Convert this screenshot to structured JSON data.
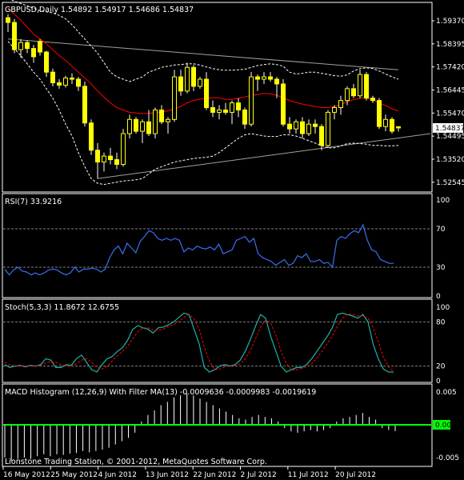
{
  "colors": {
    "background": "#000000",
    "frame": "#ffffff",
    "candle": "#ffff00",
    "wick": "#ffffff",
    "ma": "#ff0000",
    "bands": "#ffffff",
    "trend_top": "#a0a0a0",
    "trend_bottom": "#a0a0a0",
    "rsi": "#3a6ff0",
    "stoch_main": "#20b2aa",
    "stoch_signal": "#ff0000",
    "macd_hist": "#ffffff",
    "macd_filter": "#00ff00",
    "level_line": "#808080"
  },
  "chart_data": [
    {
      "type": "candlestick",
      "title": "GBPUSD,Daily  1.54892 1.54917 1.54686 1.54837",
      "symbol": "GBPUSD",
      "timeframe": "Daily",
      "ohlc_label": "1.54892 1.54917 1.54686 1.54837",
      "last_price_label": "1.54837",
      "ylim": [
        1.522,
        1.6008
      ],
      "y_ticks": [
        "1.59370",
        "1.58395",
        "1.57420",
        "1.56445",
        "1.55470",
        "1.54495",
        "1.53520",
        "1.52545"
      ],
      "y_tick_values": [
        1.5937,
        1.58395,
        1.5742,
        1.56445,
        1.5547,
        1.54495,
        1.5352,
        1.52545
      ],
      "candles": [
        [
          1.595,
          1.5965,
          1.589,
          1.593
        ],
        [
          1.593,
          1.5945,
          1.58,
          1.5815
        ],
        [
          1.5815,
          1.586,
          1.578,
          1.5845
        ],
        [
          1.5845,
          1.5855,
          1.58,
          1.582
        ],
        [
          1.582,
          1.5835,
          1.576,
          1.5785
        ],
        [
          1.585,
          1.586,
          1.579,
          1.5805
        ],
        [
          1.5805,
          1.581,
          1.57,
          1.572
        ],
        [
          1.572,
          1.5735,
          1.566,
          1.5675
        ],
        [
          1.5675,
          1.569,
          1.565,
          1.5665
        ],
        [
          1.5665,
          1.5705,
          1.5655,
          1.5695
        ],
        [
          1.5695,
          1.5715,
          1.567,
          1.569
        ],
        [
          1.569,
          1.57,
          1.564,
          1.566
        ],
        [
          1.566,
          1.568,
          1.549,
          1.5505
        ],
        [
          1.5505,
          1.552,
          1.537,
          1.539
        ],
        [
          1.539,
          1.542,
          1.527,
          1.534
        ],
        [
          1.534,
          1.538,
          1.53,
          1.5365
        ],
        [
          1.5365,
          1.54,
          1.533,
          1.535
        ],
        [
          1.535,
          1.538,
          1.531,
          1.533
        ],
        [
          1.533,
          1.548,
          1.532,
          1.546
        ],
        [
          1.546,
          1.554,
          1.544,
          1.552
        ],
        [
          1.552,
          1.553,
          1.546,
          1.547
        ],
        [
          1.547,
          1.552,
          1.542,
          1.551
        ],
        [
          1.551,
          1.556,
          1.545,
          1.546
        ],
        [
          1.546,
          1.557,
          1.544,
          1.556
        ],
        [
          1.556,
          1.558,
          1.55,
          1.551
        ],
        [
          1.551,
          1.553,
          1.546,
          1.552
        ],
        [
          1.552,
          1.573,
          1.551,
          1.57
        ],
        [
          1.57,
          1.573,
          1.562,
          1.564
        ],
        [
          1.564,
          1.576,
          1.563,
          1.574
        ],
        [
          1.574,
          1.575,
          1.564,
          1.566
        ],
        [
          1.566,
          1.57,
          1.565,
          1.569
        ],
        [
          1.569,
          1.572,
          1.556,
          1.557
        ],
        [
          1.557,
          1.56,
          1.553,
          1.555
        ],
        [
          1.555,
          1.558,
          1.552,
          1.556
        ],
        [
          1.556,
          1.559,
          1.554,
          1.555
        ],
        [
          1.555,
          1.56,
          1.55,
          1.559
        ],
        [
          1.559,
          1.561,
          1.553,
          1.556
        ],
        [
          1.556,
          1.557,
          1.548,
          1.55
        ],
        [
          1.55,
          1.572,
          1.549,
          1.57
        ],
        [
          1.57,
          1.571,
          1.564,
          1.569
        ],
        [
          1.569,
          1.572,
          1.567,
          1.57
        ],
        [
          1.57,
          1.572,
          1.568,
          1.569
        ],
        [
          1.569,
          1.57,
          1.561,
          1.567
        ],
        [
          1.567,
          1.569,
          1.549,
          1.55
        ],
        [
          1.55,
          1.553,
          1.546,
          1.548
        ],
        [
          1.548,
          1.552,
          1.546,
          1.551
        ],
        [
          1.551,
          1.553,
          1.544,
          1.546
        ],
        [
          1.546,
          1.552,
          1.545,
          1.55
        ],
        [
          1.55,
          1.552,
          1.546,
          1.549
        ],
        [
          1.549,
          1.55,
          1.539,
          1.541
        ],
        [
          1.541,
          1.556,
          1.54,
          1.555
        ],
        [
          1.555,
          1.558,
          1.552,
          1.557
        ],
        [
          1.557,
          1.562,
          1.554,
          1.56
        ],
        [
          1.56,
          1.566,
          1.558,
          1.565
        ],
        [
          1.565,
          1.567,
          1.561,
          1.562
        ],
        [
          1.562,
          1.573,
          1.561,
          1.571
        ],
        [
          1.571,
          1.572,
          1.56,
          1.561
        ],
        [
          1.561,
          1.562,
          1.559,
          1.56
        ],
        [
          1.56,
          1.561,
          1.548,
          1.549
        ],
        [
          1.549,
          1.554,
          1.547,
          1.552
        ],
        [
          1.552,
          1.553,
          1.546,
          1.547
        ],
        [
          1.5489,
          1.5492,
          1.5469,
          1.5484
        ]
      ],
      "ma": [
        1.599,
        1.5965,
        1.594,
        1.591,
        1.588,
        1.586,
        1.584,
        1.5815,
        1.579,
        1.577,
        1.5745,
        1.572,
        1.5695,
        1.567,
        1.564,
        1.5615,
        1.559,
        1.557,
        1.556,
        1.555,
        1.5547,
        1.5545,
        1.5546,
        1.5549,
        1.5552,
        1.5556,
        1.5565,
        1.5575,
        1.559,
        1.56,
        1.5606,
        1.561,
        1.5612,
        1.5611,
        1.5605,
        1.5605,
        1.561,
        1.5615,
        1.5622,
        1.5625,
        1.563,
        1.5628,
        1.5622,
        1.5611,
        1.56,
        1.5592,
        1.5585,
        1.5579,
        1.5575,
        1.557,
        1.557,
        1.5575,
        1.5582,
        1.5595,
        1.5604,
        1.561,
        1.5612,
        1.5603,
        1.559,
        1.5578,
        1.5565,
        1.5555
      ],
      "upper_band": [
        1.603,
        1.602,
        1.601,
        1.6,
        1.599,
        1.598,
        1.5975,
        1.597,
        1.596,
        1.5945,
        1.592,
        1.589,
        1.586,
        1.583,
        1.58,
        1.576,
        1.572,
        1.57,
        1.569,
        1.568,
        1.569,
        1.57,
        1.572,
        1.573,
        1.574,
        1.5745,
        1.575,
        1.5752,
        1.5755,
        1.5755,
        1.575,
        1.5742,
        1.5735,
        1.573,
        1.5728,
        1.5728,
        1.573,
        1.5732,
        1.574,
        1.5748,
        1.5752,
        1.5755,
        1.5752,
        1.5745,
        1.572,
        1.5712,
        1.5715,
        1.572,
        1.572,
        1.5715,
        1.571,
        1.5705,
        1.5703,
        1.5708,
        1.5725,
        1.5735,
        1.5738,
        1.5735,
        1.5725,
        1.5712,
        1.57,
        1.569
      ],
      "lower_band": [
        1.585,
        1.582,
        1.579,
        1.5755,
        1.572,
        1.569,
        1.565,
        1.561,
        1.556,
        1.55,
        1.545,
        1.538,
        1.532,
        1.527,
        1.525,
        1.5245,
        1.525,
        1.5255,
        1.526,
        1.5262,
        1.5265,
        1.527,
        1.529,
        1.531,
        1.532,
        1.533,
        1.534,
        1.5345,
        1.535,
        1.5355,
        1.5358,
        1.536,
        1.5365,
        1.538,
        1.54,
        1.542,
        1.544,
        1.5455,
        1.546,
        1.5455,
        1.545,
        1.5448,
        1.5448,
        1.5455,
        1.5455,
        1.545,
        1.544,
        1.543,
        1.542,
        1.541,
        1.54,
        1.54,
        1.5408,
        1.5418,
        1.542,
        1.5418,
        1.5415,
        1.541,
        1.541,
        1.5408,
        1.5408,
        1.541
      ],
      "trendline_top": [
        [
          0,
          1.586
        ],
        [
          61,
          1.573
        ]
      ],
      "trendline_bottom": [
        [
          14,
          1.527
        ],
        [
          66,
          1.546
        ]
      ]
    },
    {
      "type": "line",
      "title": "RSI(7) 33.9216",
      "ylim": [
        0,
        100
      ],
      "y_ticks": [
        "100",
        "70",
        "30",
        "0"
      ],
      "y_tick_values": [
        100,
        70,
        30,
        0
      ],
      "levels": [
        70,
        30
      ],
      "values": [
        28,
        22,
        27,
        30,
        26,
        25,
        22,
        24,
        22,
        24,
        27,
        28,
        27,
        24,
        22,
        24,
        30,
        25,
        28,
        28,
        29,
        28,
        25,
        28,
        40,
        48,
        52,
        44,
        55,
        50,
        45,
        57,
        62,
        68,
        66,
        60,
        58,
        60,
        58,
        60,
        58,
        46,
        50,
        48,
        52,
        50,
        49,
        51,
        48,
        54,
        44,
        46,
        48,
        58,
        60,
        62,
        56,
        60,
        44,
        40,
        38,
        36,
        32,
        35,
        38,
        32,
        34,
        42,
        40,
        44,
        36,
        36,
        38,
        34,
        35,
        30,
        58,
        62,
        60,
        65,
        68,
        66,
        74,
        58,
        48,
        46,
        38,
        36,
        34,
        34
      ],
      "x_positions": "uniform"
    },
    {
      "type": "line",
      "title": "Stoch(5,3,3) 11.8672 12.6755",
      "ylim": [
        0,
        100
      ],
      "y_ticks": [
        "100",
        "80",
        "20",
        "0"
      ],
      "y_tick_values": [
        100,
        80,
        20,
        0
      ],
      "levels": [
        80,
        20
      ],
      "series": [
        {
          "name": "Main",
          "values": [
            22,
            18,
            20,
            21,
            19,
            21,
            20,
            22,
            30,
            28,
            18,
            18,
            22,
            21,
            30,
            35,
            25,
            15,
            12,
            22,
            30,
            33,
            40,
            45,
            55,
            70,
            75,
            72,
            70,
            65,
            72,
            73,
            76,
            80,
            86,
            92,
            90,
            70,
            50,
            18,
            12,
            15,
            20,
            22,
            20,
            22,
            28,
            40,
            56,
            74,
            90,
            85,
            60,
            40,
            20,
            12,
            15,
            18,
            18,
            22,
            30,
            40,
            50,
            60,
            72,
            90,
            92,
            90,
            88,
            85,
            90,
            80,
            50,
            30,
            16,
            12,
            11.87
          ]
        },
        {
          "name": "Signal",
          "values": [
            25,
            22,
            20,
            20,
            20,
            20,
            20,
            21,
            24,
            26,
            25,
            22,
            20,
            20,
            23,
            28,
            30,
            25,
            18,
            16,
            20,
            27,
            34,
            40,
            47,
            57,
            67,
            72,
            72,
            69,
            69,
            70,
            74,
            76,
            81,
            86,
            90,
            84,
            70,
            46,
            27,
            15,
            16,
            19,
            21,
            21,
            23,
            30,
            41,
            57,
            73,
            83,
            78,
            62,
            40,
            24,
            15,
            15,
            17,
            19,
            23,
            31,
            40,
            50,
            61,
            74,
            85,
            91,
            90,
            88,
            88,
            85,
            73,
            53,
            32,
            19,
            12.68
          ]
        }
      ]
    },
    {
      "type": "bar",
      "title": "MACD Histogram (12,26,9) With Filter MA(13) -0.0009636 -0.0009983 -0.0019619",
      "ylim": [
        -0.0055,
        0.0055
      ],
      "y_ticks": [
        "0.005",
        "0.00",
        "-0.005"
      ],
      "y_tick_values": [
        0.005,
        0.0,
        -0.005
      ],
      "filter_value": 0.0,
      "values": [
        -0.005,
        -0.0055,
        -0.0052,
        -0.005,
        -0.0052,
        -0.0048,
        -0.0045,
        -0.0048,
        -0.0045,
        -0.0046,
        -0.0044,
        -0.0043,
        -0.004,
        -0.0042,
        -0.004,
        -0.0038,
        -0.0035,
        -0.003,
        -0.0025,
        -0.002,
        -0.0012,
        0.0005,
        0.0015,
        0.0022,
        0.003,
        0.0035,
        0.0042,
        0.0045,
        0.0048,
        0.0045,
        0.004,
        0.0035,
        0.003,
        0.0025,
        0.002,
        0.0015,
        0.001,
        0.0008,
        0.0012,
        0.0015,
        0.0012,
        0.001,
        0.0005,
        -0.0005,
        -0.001,
        -0.0012,
        -0.001,
        -0.0008,
        -0.001,
        -0.0008,
        -0.0005,
        0.0005,
        0.001,
        0.0012,
        0.0015,
        0.0018,
        0.0012,
        0.0008,
        -0.0005,
        -0.0008,
        -0.00096
      ]
    }
  ],
  "x_axis": {
    "labels": [
      "16 May 2012",
      "25 May 2012",
      "4 Jun 2012",
      "13 Jun 2012",
      "22 Jun 2012",
      "2 Jul 2012",
      "11 Jul 2012",
      "20 Jul 2012"
    ]
  },
  "copyright": "Lionstone Trading Station, © 2001-2012, MetaQuotes Software Corp."
}
